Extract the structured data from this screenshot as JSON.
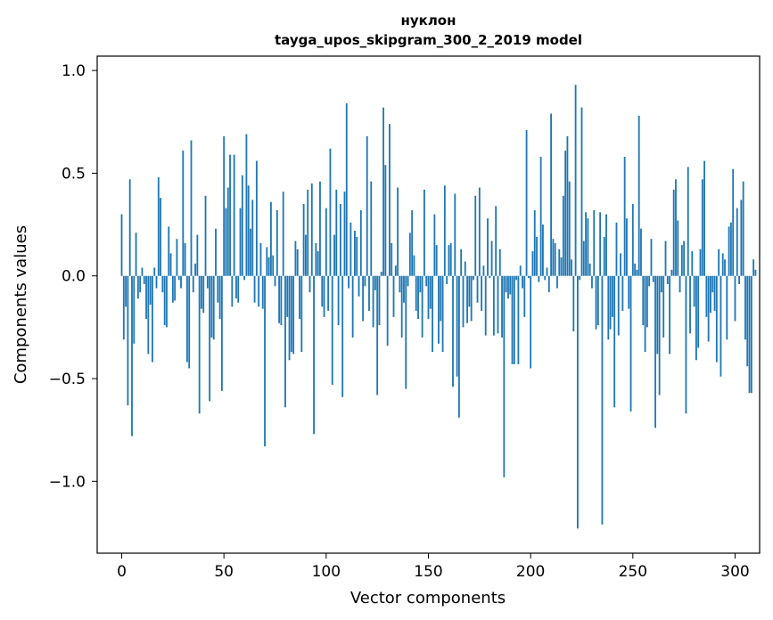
{
  "chart_data": {
    "type": "bar",
    "title": "нуклон",
    "subtitle": "tayga_upos_skipgram_300_2_2019 model",
    "xlabel": "Vector components",
    "ylabel": "Components values",
    "xlim": [
      -12,
      312
    ],
    "ylim": [
      -1.35,
      1.07
    ],
    "xticks": [
      0,
      50,
      100,
      150,
      200,
      250,
      300
    ],
    "xtick_labels": [
      "0",
      "50",
      "100",
      "150",
      "200",
      "250",
      "300"
    ],
    "yticks": [
      -1.0,
      -0.5,
      0.0,
      0.5,
      1.0
    ],
    "ytick_labels": [
      "−1.0",
      "−0.5",
      "0.0",
      "0.5",
      "1.0"
    ],
    "grid": false,
    "bar_color": "#1f77b4",
    "values": [
      0.3,
      -0.31,
      -0.15,
      -0.63,
      0.47,
      -0.78,
      -0.33,
      0.21,
      -0.11,
      -0.08,
      0.04,
      -0.04,
      -0.21,
      -0.38,
      -0.14,
      -0.42,
      0.04,
      -0.06,
      0.48,
      0.38,
      -0.08,
      -0.24,
      -0.25,
      0.24,
      0.11,
      -0.13,
      -0.12,
      0.18,
      -0.02,
      -0.06,
      0.61,
      0.16,
      -0.42,
      -0.45,
      0.66,
      -0.08,
      0.06,
      0.2,
      -0.67,
      -0.16,
      -0.18,
      0.39,
      -0.06,
      -0.61,
      -0.3,
      -0.31,
      0.23,
      -0.13,
      -0.21,
      -0.56,
      0.68,
      0.33,
      0.43,
      0.59,
      -0.15,
      0.59,
      -0.11,
      -0.13,
      0.33,
      0.49,
      -0.02,
      0.69,
      0.44,
      0.23,
      0.37,
      -0.13,
      0.56,
      -0.15,
      0.16,
      -0.16,
      -0.83,
      0.14,
      0.09,
      0.36,
      0.1,
      -0.05,
      0.32,
      -0.23,
      -0.24,
      0.41,
      -0.64,
      -0.2,
      -0.41,
      -0.37,
      -0.38,
      0.17,
      0.13,
      -0.21,
      -0.37,
      0.35,
      0.2,
      0.42,
      -0.08,
      0.45,
      -0.77,
      0.16,
      0.12,
      0.46,
      -0.15,
      -0.2,
      0.33,
      -0.17,
      0.62,
      -0.53,
      0.2,
      0.42,
      -0.24,
      0.35,
      -0.59,
      0.41,
      0.84,
      -0.06,
      0.26,
      -0.3,
      0.22,
      0.19,
      -0.1,
      0.32,
      -0.22,
      -0.05,
      0.68,
      -0.17,
      0.46,
      -0.25,
      -0.07,
      -0.58,
      -0.24,
      0.02,
      0.82,
      0.54,
      -0.34,
      0.74,
      0.16,
      -0.2,
      0.05,
      0.43,
      -0.08,
      -0.3,
      -0.13,
      -0.55,
      -0.05,
      0.21,
      0.32,
      0.1,
      -0.17,
      -0.21,
      -0.08,
      -0.3,
      0.42,
      -0.05,
      -0.21,
      -0.16,
      -0.37,
      0.3,
      0.15,
      -0.33,
      -0.22,
      -0.37,
      0.44,
      -0.04,
      0.15,
      0.16,
      -0.54,
      0.4,
      -0.49,
      -0.69,
      0.13,
      -0.25,
      0.07,
      -0.23,
      -0.15,
      -0.22,
      -0.02,
      0.39,
      -0.13,
      0.43,
      -0.17,
      0.05,
      -0.29,
      0.28,
      -0.01,
      0.17,
      -0.29,
      0.34,
      -0.28,
      0.13,
      -0.3,
      -0.98,
      -0.08,
      -0.11,
      -0.09,
      -0.43,
      -0.43,
      -0.02,
      -0.43,
      0.05,
      -0.06,
      -0.2,
      0.71,
      -0.01,
      -0.45,
      0.12,
      0.32,
      0.19,
      -0.03,
      0.58,
      0.25,
      -0.02,
      0.04,
      -0.08,
      0.79,
      0.18,
      0.16,
      -0.06,
      0.13,
      0.09,
      0.39,
      0.61,
      0.68,
      0.46,
      0.08,
      -0.27,
      0.93,
      -1.23,
      -0.02,
      0.82,
      0.17,
      0.31,
      0.28,
      0.06,
      -0.06,
      0.32,
      -0.26,
      -0.24,
      0.31,
      -1.21,
      0.19,
      0.3,
      -0.31,
      -0.26,
      -0.2,
      -0.64,
      0.26,
      -0.29,
      0.11,
      -0.17,
      0.58,
      0.28,
      -0.16,
      -0.66,
      0.35,
      0.06,
      0.03,
      0.78,
      0.23,
      -0.24,
      -0.37,
      -0.25,
      -0.05,
      0.18,
      -0.03,
      -0.74,
      -0.38,
      -0.58,
      -0.08,
      -0.3,
      0.17,
      -0.04,
      -0.38,
      0.03,
      0.42,
      0.47,
      0.27,
      -0.08,
      0.15,
      0.17,
      -0.67,
      0.53,
      -0.28,
      0.12,
      -0.15,
      -0.41,
      -0.35,
      0.13,
      0.47,
      0.56,
      -0.2,
      -0.32,
      -0.18,
      -0.08,
      -0.17,
      -0.42,
      0.13,
      -0.49,
      0.11,
      0.08,
      -0.31,
      0.24,
      0.26,
      0.52,
      -0.22,
      0.33,
      -0.04,
      0.37,
      0.46,
      -0.31,
      -0.44,
      -0.57,
      -0.57,
      0.08,
      0.03
    ]
  }
}
